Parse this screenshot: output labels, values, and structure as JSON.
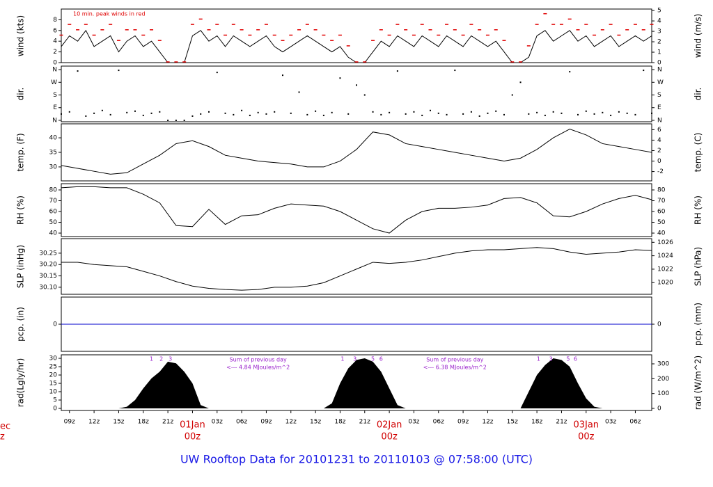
{
  "title": "UW Rooftop Data for 20101231  to  20110103 @ 07:58:00  (UTC)",
  "edge_labels": [
    "ec",
    "z"
  ],
  "x_axis": {
    "xlim": [
      0,
      72
    ],
    "xticks": [
      {
        "value": 1,
        "label": "09z"
      },
      {
        "value": 4,
        "label": "12z"
      },
      {
        "value": 7,
        "label": "15z"
      },
      {
        "value": 10,
        "label": "18z"
      },
      {
        "value": 13,
        "label": "21z"
      },
      {
        "value": 16,
        "label": "00z"
      },
      {
        "value": 19,
        "label": "03z"
      },
      {
        "value": 22,
        "label": "06z"
      },
      {
        "value": 25,
        "label": "09z"
      },
      {
        "value": 28,
        "label": "12z"
      },
      {
        "value": 31,
        "label": "15z"
      },
      {
        "value": 34,
        "label": "18z"
      },
      {
        "value": 37,
        "label": "21z"
      },
      {
        "value": 40,
        "label": "00z"
      },
      {
        "value": 43,
        "label": "03z"
      },
      {
        "value": 46,
        "label": "06z"
      },
      {
        "value": 49,
        "label": "09z"
      },
      {
        "value": 52,
        "label": "12z"
      },
      {
        "value": 55,
        "label": "15z"
      },
      {
        "value": 58,
        "label": "18z"
      },
      {
        "value": 61,
        "label": "21z"
      },
      {
        "value": 64,
        "label": "00z"
      },
      {
        "value": 67,
        "label": "03z"
      },
      {
        "value": 70,
        "label": "06z"
      }
    ],
    "dates": [
      {
        "value": 16,
        "label": "01Jan"
      },
      {
        "value": 40,
        "label": "02Jan"
      },
      {
        "value": 64,
        "label": "03Jan"
      }
    ]
  },
  "chart_data": [
    {
      "type": "line",
      "ylabel": "wind (kts)",
      "y2label": "wind (m/s)",
      "annotation": "10 min. peak winds in red",
      "ylim": [
        0,
        10
      ],
      "yticks": [
        0,
        2,
        4,
        6,
        8
      ],
      "y2lim": [
        0,
        5.14
      ],
      "y2ticks": [
        0,
        1,
        2,
        3,
        4,
        5
      ],
      "x": [
        0,
        1,
        2,
        3,
        4,
        5,
        6,
        7,
        8,
        9,
        10,
        11,
        12,
        13,
        14,
        15,
        16,
        17,
        18,
        19,
        20,
        21,
        22,
        23,
        24,
        25,
        26,
        27,
        28,
        29,
        30,
        31,
        32,
        33,
        34,
        35,
        36,
        37,
        38,
        39,
        40,
        41,
        42,
        43,
        44,
        45,
        46,
        47,
        48,
        49,
        50,
        51,
        52,
        53,
        54,
        55,
        56,
        57,
        58,
        59,
        60,
        61,
        62,
        63,
        64,
        65,
        66,
        67,
        68,
        69,
        70,
        71,
        72
      ],
      "series": [
        {
          "color": "#000000",
          "style": "line",
          "values": [
            3,
            5,
            4,
            6,
            3,
            4,
            5,
            2,
            4,
            5,
            3,
            4,
            2,
            0,
            0,
            0,
            5,
            6,
            4,
            5,
            3,
            5,
            4,
            3,
            4,
            5,
            3,
            2,
            3,
            4,
            5,
            4,
            3,
            2,
            3,
            1,
            0,
            0,
            2,
            4,
            3,
            5,
            4,
            3,
            5,
            4,
            3,
            5,
            4,
            3,
            5,
            4,
            3,
            4,
            2,
            0,
            0,
            1,
            5,
            6,
            4,
            5,
            6,
            4,
            5,
            3,
            4,
            5,
            3,
            4,
            5,
            4,
            5
          ]
        },
        {
          "color": "#e00000",
          "style": "dash",
          "values": [
            5,
            7,
            6,
            7,
            5,
            6,
            7,
            4,
            6,
            6,
            5,
            6,
            4,
            0,
            0,
            0,
            7,
            8,
            6,
            7,
            5,
            7,
            6,
            5,
            6,
            7,
            5,
            4,
            5,
            6,
            7,
            6,
            5,
            4,
            5,
            3,
            0,
            0,
            4,
            6,
            5,
            7,
            6,
            5,
            7,
            6,
            5,
            7,
            6,
            5,
            7,
            6,
            5,
            6,
            4,
            0,
            0,
            3,
            7,
            9,
            7,
            7,
            8,
            6,
            7,
            5,
            6,
            7,
            5,
            6,
            7,
            6,
            7
          ]
        }
      ]
    },
    {
      "type": "scatter",
      "ylabel": "dir.",
      "y2label": "dir.",
      "ylim": [
        -10,
        385
      ],
      "yticks": [
        {
          "value": 0,
          "label": "N"
        },
        {
          "value": 90,
          "label": "E"
        },
        {
          "value": 180,
          "label": "S"
        },
        {
          "value": 270,
          "label": "W"
        },
        {
          "value": 360,
          "label": "N"
        }
      ],
      "y2lim": [
        -10,
        385
      ],
      "y2ticks": [
        {
          "value": 0,
          "label": "N"
        },
        {
          "value": 90,
          "label": "E"
        },
        {
          "value": 180,
          "label": "S"
        },
        {
          "value": 270,
          "label": "W"
        },
        {
          "value": 360,
          "label": "N"
        }
      ],
      "x": [
        0,
        1,
        2,
        3,
        4,
        5,
        6,
        7,
        8,
        9,
        10,
        11,
        12,
        13,
        14,
        15,
        16,
        17,
        18,
        19,
        20,
        21,
        22,
        23,
        24,
        25,
        26,
        27,
        28,
        29,
        30,
        31,
        32,
        33,
        34,
        35,
        36,
        37,
        38,
        39,
        40,
        41,
        42,
        43,
        44,
        45,
        46,
        47,
        48,
        49,
        50,
        51,
        52,
        53,
        54,
        55,
        56,
        57,
        58,
        59,
        60,
        61,
        62,
        63,
        64,
        65,
        66,
        67,
        68,
        69,
        70,
        71,
        72
      ],
      "series": [
        {
          "color": "#000000",
          "values": [
            45,
            60,
            350,
            30,
            50,
            70,
            40,
            355,
            55,
            65,
            35,
            50,
            60,
            0,
            0,
            0,
            30,
            45,
            60,
            340,
            50,
            40,
            70,
            35,
            55,
            45,
            60,
            320,
            50,
            200,
            40,
            65,
            35,
            55,
            300,
            45,
            250,
            180,
            60,
            40,
            55,
            350,
            45,
            60,
            35,
            70,
            50,
            40,
            355,
            45,
            60,
            30,
            50,
            65,
            40,
            180,
            270,
            45,
            55,
            35,
            60,
            50,
            345,
            40,
            65,
            45,
            55,
            35,
            60,
            50,
            40,
            355,
            50
          ]
        }
      ]
    },
    {
      "type": "line",
      "ylabel": "temp. (F)",
      "y2label": "temp. (C)",
      "ylim": [
        25.2,
        44.8
      ],
      "yticks": [
        30,
        35,
        40
      ],
      "y2lim": [
        -3.78,
        7.11
      ],
      "y2ticks": [
        -2,
        0,
        2,
        4,
        6
      ],
      "x": [
        0,
        2,
        4,
        6,
        8,
        10,
        12,
        14,
        16,
        18,
        20,
        22,
        24,
        26,
        28,
        30,
        32,
        34,
        36,
        38,
        40,
        42,
        44,
        46,
        48,
        50,
        52,
        54,
        56,
        58,
        60,
        62,
        64,
        66,
        68,
        70,
        72
      ],
      "series": [
        {
          "color": "#000000",
          "style": "line",
          "values": [
            30.5,
            29.5,
            28.5,
            27.5,
            28,
            31,
            34,
            38,
            39,
            37,
            34,
            33,
            32,
            31.5,
            31,
            30,
            30,
            32,
            36,
            42,
            41,
            38,
            37,
            36,
            35,
            34,
            33,
            32,
            33,
            36,
            40,
            43,
            41,
            38,
            37,
            36,
            35
          ]
        }
      ]
    },
    {
      "type": "line",
      "ylabel": "RH (%)",
      "y2label": "RH (%)",
      "ylim": [
        36.8,
        85.8
      ],
      "yticks": [
        40,
        50,
        60,
        70,
        80
      ],
      "y2lim": [
        36.8,
        85.8
      ],
      "y2ticks": [
        40,
        50,
        60,
        70,
        80
      ],
      "x": [
        0,
        2,
        4,
        6,
        8,
        10,
        12,
        14,
        16,
        18,
        20,
        22,
        24,
        26,
        28,
        30,
        32,
        34,
        36,
        38,
        40,
        42,
        44,
        46,
        48,
        50,
        52,
        54,
        56,
        58,
        60,
        62,
        64,
        66,
        68,
        70,
        72
      ],
      "series": [
        {
          "color": "#000000",
          "style": "line",
          "values": [
            82,
            83,
            83,
            82,
            82,
            76,
            68,
            47,
            46,
            62,
            48,
            56,
            57,
            63,
            67,
            66,
            65,
            60,
            52,
            44,
            40,
            52,
            60,
            63,
            63,
            64,
            66,
            72,
            73,
            68,
            56,
            55,
            60,
            67,
            72,
            75,
            71
          ]
        }
      ]
    },
    {
      "type": "line",
      "ylabel": "SLP (inHg)",
      "y2label": "SLP (hPa)",
      "ylim": [
        30.069,
        30.314
      ],
      "yticks": [
        {
          "value": 30.1,
          "label": "30.10"
        },
        30.15,
        {
          "value": 30.2,
          "label": "30.20"
        },
        30.25
      ],
      "y2lim": [
        1018.26,
        1026.55
      ],
      "y2ticks": [
        1020,
        1022,
        1024,
        1026
      ],
      "x": [
        0,
        2,
        4,
        6,
        8,
        10,
        12,
        14,
        16,
        18,
        20,
        22,
        24,
        26,
        28,
        30,
        32,
        34,
        36,
        38,
        40,
        42,
        44,
        46,
        48,
        50,
        52,
        54,
        56,
        58,
        60,
        62,
        64,
        66,
        68,
        70,
        72
      ],
      "series": [
        {
          "color": "#000000",
          "style": "line",
          "values": [
            30.21,
            30.21,
            30.2,
            30.195,
            30.19,
            30.17,
            30.15,
            30.125,
            30.105,
            30.095,
            30.09,
            30.087,
            30.09,
            30.1,
            30.1,
            30.105,
            30.12,
            30.15,
            30.18,
            30.21,
            30.205,
            30.21,
            30.22,
            30.235,
            30.25,
            30.26,
            30.265,
            30.265,
            30.27,
            30.275,
            30.27,
            30.255,
            30.245,
            30.25,
            30.255,
            30.265,
            30.262
          ]
        }
      ]
    },
    {
      "type": "line",
      "ylabel": "pcp. (in)",
      "y2label": "pcp. (mm)",
      "ylim": [
        -0.1,
        0.1
      ],
      "yticks": [
        0
      ],
      "y2lim": [
        -2.54,
        2.54
      ],
      "y2ticks": [
        0
      ],
      "x": [
        0,
        2,
        4,
        6,
        8,
        10,
        12,
        14,
        16,
        18,
        20,
        22,
        24,
        26,
        28,
        30,
        32,
        34,
        36,
        38,
        40,
        42,
        44,
        46,
        48,
        50,
        52,
        54,
        56,
        58,
        60,
        62,
        64,
        66,
        68,
        70,
        72
      ],
      "series": [
        {
          "color": "#0000cc",
          "style": "line",
          "values": [
            0,
            0,
            0,
            0,
            0,
            0,
            0,
            0,
            0,
            0,
            0,
            0,
            0,
            0,
            0,
            0,
            0,
            0,
            0,
            0,
            0,
            0,
            0,
            0,
            0,
            0,
            0,
            0,
            0,
            0,
            0,
            0,
            0,
            0,
            0,
            0,
            0
          ]
        }
      ]
    },
    {
      "type": "area",
      "ylabel": "rad(Lgly/hr)",
      "y2label": "rad (W/m^2)",
      "ylim": [
        -1.25,
        32.1
      ],
      "yticks": [
        0,
        5,
        10,
        15,
        20,
        25,
        30
      ],
      "y2lim": [
        -14,
        361
      ],
      "y2ticks": [
        0,
        100,
        200,
        300
      ],
      "x": [
        0,
        1,
        2,
        3,
        4,
        5,
        6,
        7,
        8,
        9,
        10,
        11,
        12,
        13,
        14,
        15,
        16,
        17,
        18,
        19,
        20,
        21,
        22,
        23,
        24,
        25,
        26,
        27,
        28,
        29,
        30,
        31,
        32,
        33,
        34,
        35,
        36,
        37,
        38,
        39,
        40,
        41,
        42,
        43,
        44,
        45,
        46,
        47,
        48,
        49,
        50,
        51,
        52,
        53,
        54,
        55,
        56,
        57,
        58,
        59,
        60,
        61,
        62,
        63,
        64,
        65,
        66,
        67,
        68,
        69,
        70,
        71,
        72
      ],
      "series": [
        {
          "color": "#000000",
          "values": [
            0,
            0,
            0,
            0,
            0,
            0,
            0,
            0,
            1,
            5,
            12,
            18,
            22,
            28,
            27,
            22,
            15,
            2,
            0,
            0,
            0,
            0,
            0,
            0,
            0,
            0,
            0,
            0,
            0,
            0,
            0,
            0,
            0,
            3,
            15,
            24,
            29,
            30,
            28,
            22,
            12,
            2,
            0,
            0,
            0,
            0,
            0,
            0,
            0,
            0,
            0,
            0,
            0,
            0,
            0,
            0,
            0,
            10,
            20,
            26,
            30,
            29,
            25,
            15,
            6,
            1,
            0,
            0,
            0,
            0,
            0,
            0,
            0
          ]
        }
      ],
      "marks": [
        {
          "x": 11,
          "label": "1"
        },
        {
          "x": 12.2,
          "label": "2"
        },
        {
          "x": 13.3,
          "label": "3"
        },
        {
          "x": 34.3,
          "label": "1"
        },
        {
          "x": 35.8,
          "label": "3"
        },
        {
          "x": 38,
          "label": "5"
        },
        {
          "x": 39,
          "label": "6"
        },
        {
          "x": 58.2,
          "label": "1"
        },
        {
          "x": 59.7,
          "label": "3"
        },
        {
          "x": 61.8,
          "label": "5"
        },
        {
          "x": 62.7,
          "label": "6"
        }
      ],
      "notes": [
        {
          "x": 24,
          "lines": [
            "Sum of previous day",
            "<--- 4.84 MJoules/m^2"
          ]
        },
        {
          "x": 48,
          "lines": [
            "Sum of previous day",
            "<--- 6.38 MJoules/m^2"
          ]
        }
      ]
    }
  ]
}
